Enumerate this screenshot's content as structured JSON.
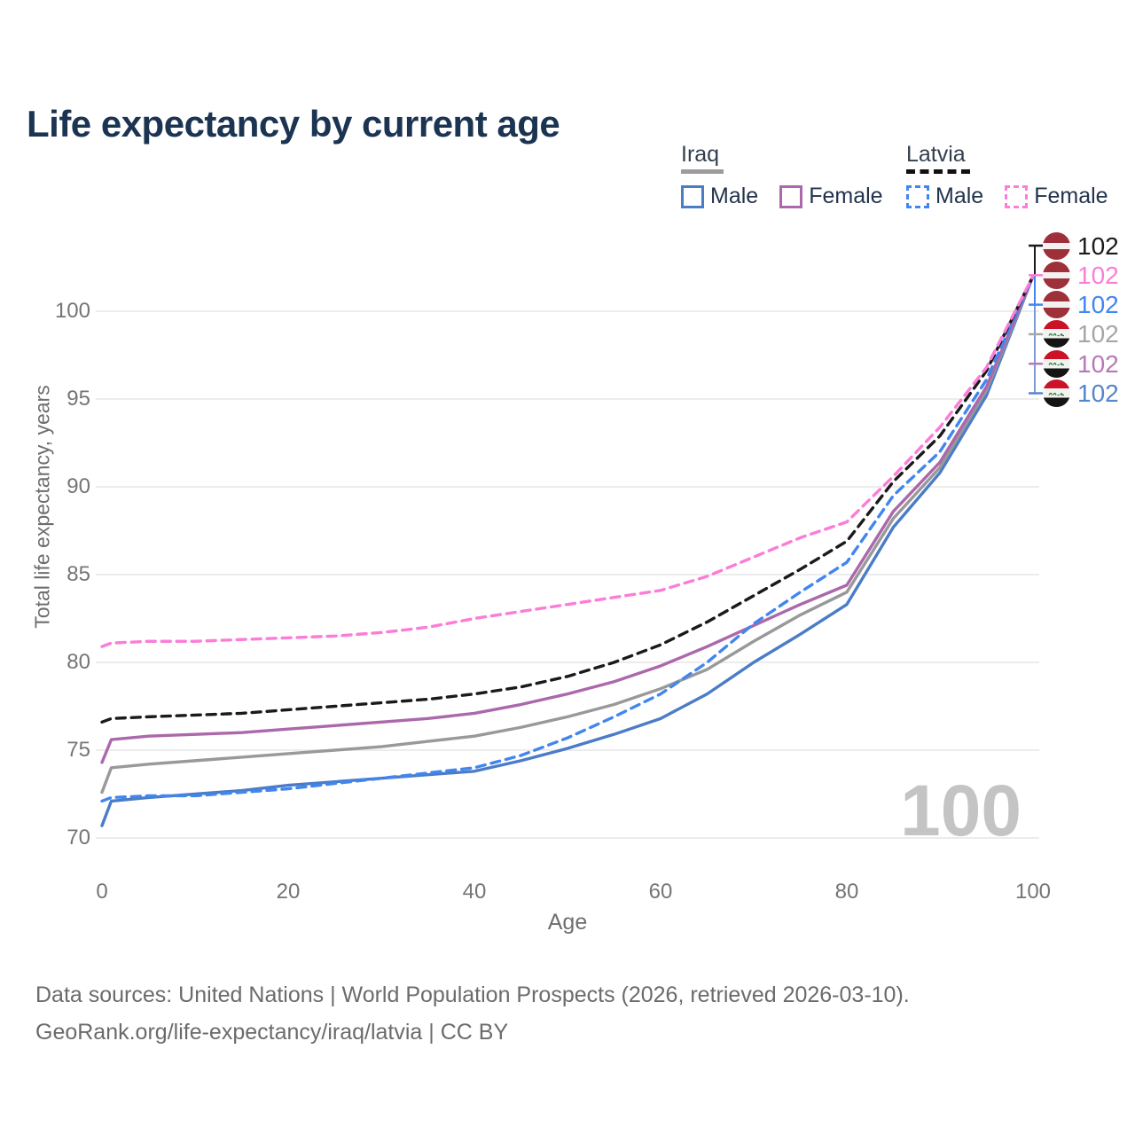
{
  "title": "Life expectancy by current age",
  "watermark_age": "100",
  "legend": {
    "groups": [
      {
        "name": "Iraq",
        "line_style": "solid",
        "items": [
          {
            "label": "Male",
            "color": "#4a7cc7"
          },
          {
            "label": "Female",
            "color": "#ab68ab"
          }
        ]
      },
      {
        "name": "Latvia",
        "line_style": "dashed",
        "items": [
          {
            "label": "Male",
            "color": "#4186f0"
          },
          {
            "label": "Female",
            "color": "#fb7dd8"
          }
        ]
      }
    ]
  },
  "footer": {
    "line1": "Data sources: United Nations | World Population Prospects (2026, retrieved 2026-03-10).",
    "line2": "GeoRank.org/life-expectancy/iraq/latvia | CC BY"
  },
  "chart_data": {
    "type": "line",
    "title": "Life expectancy by current age",
    "xlabel": "Age",
    "ylabel": "Total life expectancy, years",
    "xlim": [
      0,
      100
    ],
    "ylim": [
      70,
      102.5
    ],
    "x_ticks": [
      0,
      20,
      40,
      60,
      80,
      100
    ],
    "y_ticks": [
      70,
      75,
      80,
      85,
      90,
      95,
      100
    ],
    "grid": "horizontal-only",
    "gridline_color": "#ececec",
    "legend_position": "top-right",
    "x": [
      0,
      1,
      5,
      10,
      15,
      20,
      25,
      30,
      35,
      40,
      45,
      50,
      55,
      60,
      65,
      70,
      75,
      80,
      85,
      90,
      95,
      100
    ],
    "series": [
      {
        "name": "Iraq Male",
        "country": "Iraq",
        "sex": "Male",
        "dash": false,
        "color": "#4a7cc7",
        "values": [
          70.7,
          72.1,
          72.3,
          72.5,
          72.7,
          73.0,
          73.2,
          73.4,
          73.6,
          73.8,
          74.4,
          75.1,
          75.9,
          76.8,
          78.2,
          80.0,
          81.6,
          83.3,
          87.7,
          90.8,
          95.2,
          102
        ]
      },
      {
        "name": "Iraq Total",
        "country": "Iraq",
        "sex": "Both",
        "dash": false,
        "color": "#999999",
        "values": [
          72.6,
          74.0,
          74.2,
          74.4,
          74.6,
          74.8,
          75.0,
          75.2,
          75.5,
          75.8,
          76.3,
          76.9,
          77.6,
          78.5,
          79.6,
          81.2,
          82.7,
          84.0,
          88.2,
          91.1,
          95.5,
          102
        ]
      },
      {
        "name": "Iraq Female",
        "country": "Iraq",
        "sex": "Female",
        "dash": false,
        "color": "#ab68ab",
        "values": [
          74.3,
          75.6,
          75.8,
          75.9,
          76.0,
          76.2,
          76.4,
          76.6,
          76.8,
          77.1,
          77.6,
          78.2,
          78.9,
          79.8,
          80.9,
          82.1,
          83.3,
          84.4,
          88.6,
          91.4,
          95.7,
          102
        ]
      },
      {
        "name": "Latvia Male",
        "country": "Latvia",
        "sex": "Male",
        "dash": true,
        "color": "#4186f0",
        "values": [
          72.1,
          72.3,
          72.4,
          72.4,
          72.6,
          72.8,
          73.1,
          73.4,
          73.7,
          74.0,
          74.7,
          75.7,
          76.9,
          78.2,
          80.0,
          82.2,
          84.0,
          85.7,
          89.5,
          92.0,
          96.1,
          102
        ]
      },
      {
        "name": "Latvia Total",
        "country": "Latvia",
        "sex": "Both",
        "dash": true,
        "color": "#1a1a1a",
        "values": [
          76.6,
          76.8,
          76.9,
          77.0,
          77.1,
          77.3,
          77.5,
          77.7,
          77.9,
          78.2,
          78.6,
          79.2,
          80.0,
          81.0,
          82.3,
          83.8,
          85.3,
          86.9,
          90.3,
          92.9,
          96.6,
          102
        ]
      },
      {
        "name": "Latvia Female",
        "country": "Latvia",
        "sex": "Female",
        "dash": true,
        "color": "#fb7dd8",
        "values": [
          80.9,
          81.1,
          81.2,
          81.2,
          81.3,
          81.4,
          81.5,
          81.7,
          82.0,
          82.5,
          82.9,
          83.3,
          83.7,
          84.1,
          84.9,
          86.0,
          87.1,
          88.0,
          90.6,
          93.4,
          96.8,
          102
        ]
      }
    ],
    "end_labels": [
      {
        "series": "Latvia Total",
        "flag": "latvia",
        "flag_icon": "latvia-flag-icon",
        "value": "102",
        "color": "#1a1a1a"
      },
      {
        "series": "Latvia Female",
        "flag": "latvia",
        "flag_icon": "latvia-flag-icon",
        "value": "102",
        "color": "#fb7dd8"
      },
      {
        "series": "Latvia Male",
        "flag": "latvia",
        "flag_icon": "latvia-flag-icon",
        "value": "102",
        "color": "#4186f0"
      },
      {
        "series": "Iraq Total",
        "flag": "iraq",
        "flag_icon": "iraq-flag-icon",
        "value": "102",
        "color": "#a6a6a6"
      },
      {
        "series": "Iraq Female",
        "flag": "iraq",
        "flag_icon": "iraq-flag-icon",
        "value": "102",
        "color": "#b878b8"
      },
      {
        "series": "Iraq Male",
        "flag": "iraq",
        "flag_icon": "iraq-flag-icon",
        "value": "102",
        "color": "#5585cc"
      }
    ]
  }
}
